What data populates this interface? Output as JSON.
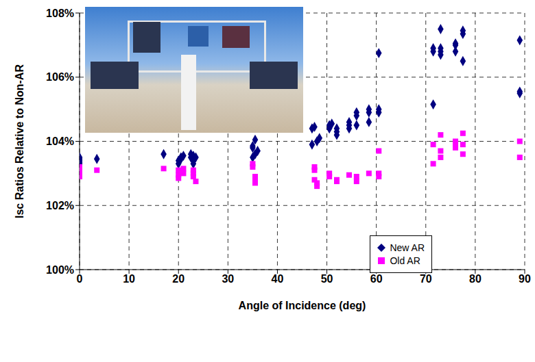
{
  "chart_data": {
    "type": "scatter",
    "x_label": "Angle of Incidence (deg)",
    "y_label": "Isc Ratios Relative to Non-AR",
    "xlim": [
      0,
      90
    ],
    "xticks": [
      0,
      10,
      20,
      30,
      40,
      50,
      60,
      70,
      80,
      90
    ],
    "ylim": [
      100,
      108
    ],
    "yticks": [
      {
        "value": 100,
        "label": "100%"
      },
      {
        "value": 102,
        "label": "102%"
      },
      {
        "value": 104,
        "label": "104%"
      },
      {
        "value": 106,
        "label": "106%"
      },
      {
        "value": 108,
        "label": "108%"
      }
    ],
    "grid": true,
    "legend": "lower right",
    "series": [
      {
        "name": "New AR",
        "color": "#000080",
        "marker": "diamond",
        "x": [
          0,
          0,
          0,
          0,
          0,
          3.5,
          17,
          20,
          20,
          20.5,
          20.5,
          21,
          22.5,
          22.5,
          23,
          23,
          23,
          23.5,
          35,
          35,
          35,
          35.5,
          35.5,
          36,
          47,
          47,
          47.5,
          48,
          48.5,
          50.5,
          50.5,
          51,
          52,
          52,
          52,
          54.5,
          54.5,
          54.5,
          56,
          56,
          56,
          58.5,
          58.5,
          58.5,
          60.5,
          60.5,
          60.5,
          71.5,
          71.5,
          71.5,
          73,
          73,
          73,
          73,
          76,
          76,
          76,
          77.5,
          77.5,
          77.5,
          89,
          89,
          89
        ],
        "values": [
          103.3,
          103.4,
          103.5,
          103.45,
          103.35,
          103.45,
          103.6,
          103.3,
          103.4,
          103.5,
          103.45,
          103.55,
          103.6,
          103.5,
          103.4,
          103.3,
          103.55,
          103.5,
          103.8,
          103.85,
          103.5,
          103.6,
          104.05,
          103.7,
          104.4,
          103.9,
          104.45,
          104.0,
          104.1,
          104.5,
          104.4,
          104.55,
          104.3,
          104.2,
          104.4,
          104.6,
          104.5,
          104.4,
          104.8,
          104.9,
          104.5,
          105.0,
          104.9,
          104.6,
          105.0,
          104.9,
          106.75,
          106.8,
          106.9,
          105.15,
          107.5,
          106.9,
          106.7,
          106.8,
          107.05,
          107.0,
          106.8,
          107.45,
          107.35,
          106.5,
          107.15,
          105.55,
          105.5
        ]
      },
      {
        "name": "Old AR",
        "color": "#ff00ff",
        "marker": "square",
        "x": [
          0,
          0,
          0,
          0,
          3.5,
          17,
          20,
          20,
          20,
          21,
          21,
          23,
          23,
          23,
          23.5,
          35,
          35,
          35.5,
          35.5,
          35.5,
          47.5,
          47.5,
          47.5,
          48,
          48,
          50.5,
          50.5,
          52,
          52,
          54.5,
          56,
          56,
          58.5,
          60.5,
          60.5,
          60.5,
          71.5,
          71.5,
          73,
          73,
          73,
          76,
          76,
          76,
          77.5,
          77.5,
          77.5,
          89,
          89
        ],
        "values": [
          103.2,
          103.0,
          102.9,
          103.1,
          103.1,
          103.15,
          103.1,
          102.95,
          102.85,
          103.0,
          103.15,
          103.1,
          102.9,
          103.0,
          102.75,
          103.3,
          103.2,
          102.9,
          102.8,
          102.7,
          103.2,
          103.1,
          102.8,
          102.6,
          102.7,
          103.0,
          102.9,
          102.8,
          102.75,
          102.95,
          102.9,
          102.75,
          103.0,
          103.7,
          103.0,
          102.9,
          103.9,
          103.3,
          104.2,
          103.5,
          103.7,
          104.0,
          103.9,
          103.8,
          104.25,
          103.9,
          103.6,
          104.0,
          103.5
        ]
      }
    ]
  }
}
